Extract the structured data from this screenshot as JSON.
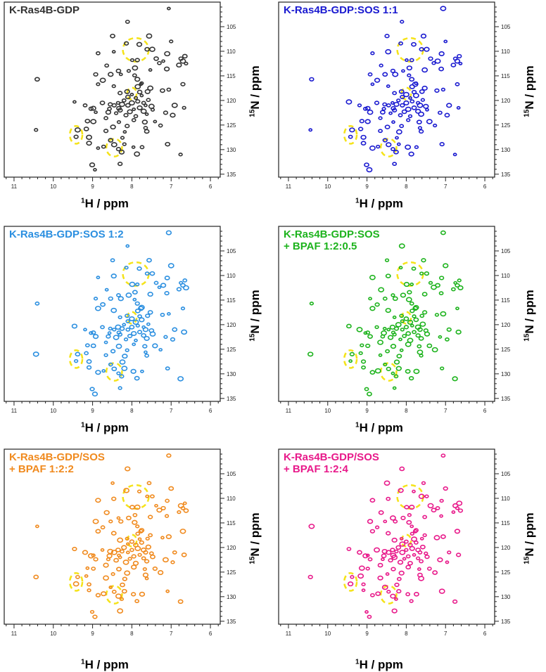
{
  "chart_data": {
    "type": "scatter",
    "description_type": "2D 1H-15N HSQC NMR spectra",
    "xlabel_sup": "1",
    "xlabel": "H / ppm",
    "ylabel_sup": "15",
    "ylabel": "N / ppm",
    "xlim": [
      11.25,
      5.75
    ],
    "ylim": [
      100,
      135.6
    ],
    "xticks": [
      11,
      10,
      9,
      8,
      7,
      6
    ],
    "yticks": [
      105,
      110,
      115,
      120,
      125,
      130,
      135
    ],
    "highlight_color": "#f5e31a",
    "highlights": [
      {
        "h": 7.9,
        "n": 109.7,
        "rh": 0.33,
        "rn": 2.4
      },
      {
        "h": 8.0,
        "n": 118.6,
        "rh": 0.12,
        "rn": 1.2
      },
      {
        "h": 9.42,
        "n": 127.0,
        "rh": 0.16,
        "rn": 1.8
      },
      {
        "h": 8.45,
        "n": 129.6,
        "rh": 0.2,
        "rn": 1.8
      }
    ],
    "peaks": [
      [
        7.06,
        101.3
      ],
      [
        8.11,
        104.0
      ],
      [
        8.49,
        106.9
      ],
      [
        7.56,
        106.9
      ],
      [
        7.0,
        108.0
      ],
      [
        8.14,
        108.4
      ],
      [
        7.81,
        108.6
      ],
      [
        8.46,
        110.1
      ],
      [
        8.86,
        110.4
      ],
      [
        7.61,
        109.6
      ],
      [
        7.48,
        109.6
      ],
      [
        7.99,
        111.8
      ],
      [
        7.86,
        111.8
      ],
      [
        7.11,
        113.6
      ],
      [
        7.53,
        113.8
      ],
      [
        8.64,
        112.9
      ],
      [
        8.34,
        114.0
      ],
      [
        7.92,
        113.4
      ],
      [
        8.08,
        114.0
      ],
      [
        8.92,
        114.7
      ],
      [
        8.54,
        114.7
      ],
      [
        8.28,
        114.7
      ],
      [
        7.93,
        114.9
      ],
      [
        10.41,
        115.7
      ],
      [
        8.74,
        115.9
      ],
      [
        8.86,
        116.7
      ],
      [
        6.7,
        116.7
      ],
      [
        7.86,
        115.7
      ],
      [
        7.77,
        116.7
      ],
      [
        7.06,
        117.8
      ],
      [
        7.22,
        118.0
      ],
      [
        7.53,
        117.5
      ],
      [
        8.46,
        117.1
      ],
      [
        8.3,
        118.5
      ],
      [
        8.12,
        118.2
      ],
      [
        9.46,
        120.3
      ],
      [
        9.19,
        121.0
      ],
      [
        8.75,
        120.5
      ],
      [
        6.91,
        121.0
      ],
      [
        6.67,
        121.5
      ],
      [
        9.04,
        121.7
      ],
      [
        8.98,
        121.6
      ],
      [
        8.92,
        122.4
      ],
      [
        8.57,
        121.7
      ],
      [
        8.33,
        121.6
      ],
      [
        7.5,
        121.2
      ],
      [
        7.47,
        121.9
      ],
      [
        7.14,
        122.5
      ],
      [
        6.96,
        123.0
      ],
      [
        7.62,
        122.8
      ],
      [
        8.66,
        123.6
      ],
      [
        9.13,
        124.2
      ],
      [
        8.98,
        124.3
      ],
      [
        8.33,
        124.4
      ],
      [
        8.12,
        125.2
      ],
      [
        7.67,
        124.4
      ],
      [
        7.41,
        124.3
      ],
      [
        7.27,
        125.1
      ],
      [
        9.16,
        125.8
      ],
      [
        9.38,
        126.0
      ],
      [
        10.44,
        126.0
      ],
      [
        8.66,
        126.2
      ],
      [
        8.48,
        125.4
      ],
      [
        8.18,
        126.4
      ],
      [
        7.65,
        125.6
      ],
      [
        7.62,
        126.3
      ],
      [
        9.09,
        127.5
      ],
      [
        8.24,
        127.6
      ],
      [
        9.42,
        127.4
      ],
      [
        9.09,
        128.7
      ],
      [
        8.86,
        129.7
      ],
      [
        8.72,
        129.4
      ],
      [
        8.54,
        128.1
      ],
      [
        8.45,
        129.0
      ],
      [
        8.19,
        128.9
      ],
      [
        8.34,
        129.9
      ],
      [
        8.26,
        130.5
      ],
      [
        7.96,
        129.5
      ],
      [
        7.74,
        129.5
      ],
      [
        7.09,
        128.9
      ],
      [
        7.87,
        130.9
      ],
      [
        6.76,
        131.0
      ],
      [
        8.3,
        132.9
      ],
      [
        9.01,
        133.1
      ],
      [
        8.94,
        134.1
      ],
      [
        8.2,
        120
      ],
      [
        8.1,
        121
      ],
      [
        8.0,
        120.5
      ],
      [
        7.9,
        119.5
      ],
      [
        7.85,
        120.2
      ],
      [
        7.8,
        121.5
      ],
      [
        7.75,
        119
      ],
      [
        7.7,
        120.5
      ],
      [
        8.3,
        122
      ],
      [
        8.25,
        120.8
      ],
      [
        8.4,
        122.6
      ],
      [
        8.15,
        123
      ],
      [
        8.05,
        122.3
      ],
      [
        7.95,
        121.8
      ],
      [
        7.9,
        123.2
      ],
      [
        7.8,
        118.3
      ],
      [
        7.85,
        117.2
      ],
      [
        7.75,
        116.5
      ],
      [
        8.45,
        121
      ],
      [
        8.6,
        122.4
      ],
      [
        8.0,
        118.8
      ],
      [
        7.95,
        124
      ],
      [
        8.1,
        119.3
      ],
      [
        7.7,
        122.2
      ],
      [
        8.35,
        120.5
      ],
      [
        8.55,
        120.8
      ],
      [
        7.6,
        118.2
      ],
      [
        7.65,
        121
      ],
      [
        7.58,
        119.9
      ],
      [
        6.65,
        111
      ],
      [
        6.7,
        112
      ],
      [
        6.62,
        112.5
      ],
      [
        6.75,
        111.5
      ],
      [
        6.8,
        112.8
      ],
      [
        7.2,
        112
      ],
      [
        7.3,
        112.4
      ],
      [
        7.38,
        111.5
      ],
      [
        7.1,
        110.5
      ]
    ],
    "panels": [
      {
        "title": [
          "K-Ras4B-GDP"
        ],
        "color": "#333333"
      },
      {
        "title": [
          "K-Ras4B-GDP:SOS 1:1"
        ],
        "color": "#1a1ad0"
      },
      {
        "title": [
          "K-Ras4B-GDP:SOS 1:2"
        ],
        "color": "#2b8fe0"
      },
      {
        "title": [
          "K-Ras4B-GDP:SOS",
          "+ BPAF 1:2:0.5"
        ],
        "color": "#1db31d"
      },
      {
        "title": [
          "K-Ras4B-GDP/SOS",
          "+ BPAF 1:2:2"
        ],
        "color": "#f08a1e"
      },
      {
        "title": [
          "K-Ras4B-GDP/SOS",
          "+ BPAF 1:2:4"
        ],
        "color": "#e8198a"
      }
    ]
  }
}
